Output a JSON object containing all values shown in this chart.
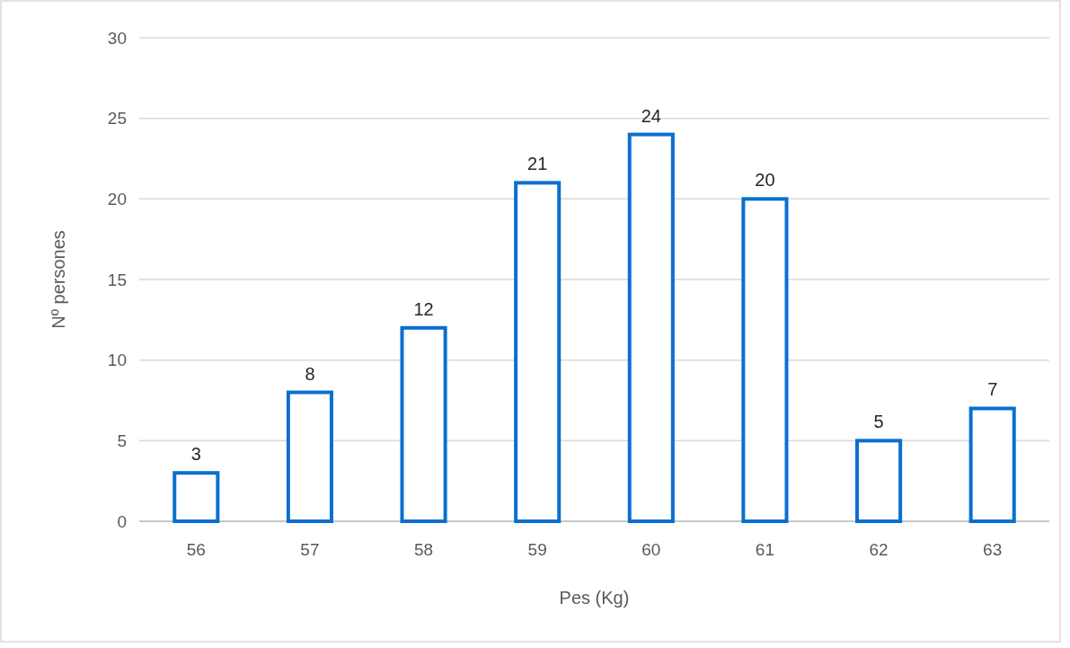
{
  "chart_data": {
    "type": "bar",
    "xlabel": "Pes (Kg)",
    "ylabel": "Nº persones",
    "categories": [
      "56",
      "57",
      "58",
      "59",
      "60",
      "61",
      "62",
      "63"
    ],
    "values": [
      3,
      8,
      12,
      21,
      24,
      20,
      5,
      7
    ],
    "color": "#0b6fd0",
    "ylim": [
      0,
      30
    ],
    "yticks": [
      0,
      5,
      10,
      15,
      20,
      25,
      30
    ],
    "grid": "y",
    "data_labels": true
  }
}
